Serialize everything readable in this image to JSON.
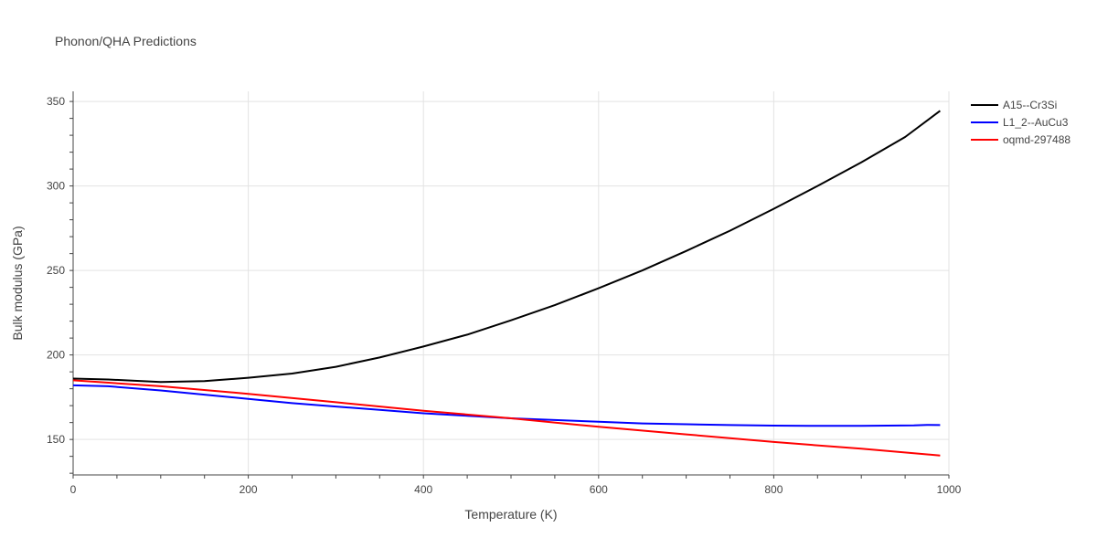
{
  "chart_data": {
    "type": "line",
    "title": "Phonon/QHA Predictions",
    "xlabel": "Temperature (K)",
    "ylabel": "Bulk modulus (GPa)",
    "xlim": [
      0,
      1000
    ],
    "ylim": [
      129,
      356
    ],
    "xticks": [
      0,
      200,
      400,
      600,
      800,
      1000
    ],
    "yticks": [
      150,
      200,
      250,
      300,
      350
    ],
    "grid": true,
    "legend_position": "top-right",
    "series": [
      {
        "name": "A15--Cr3Si",
        "color": "#000000",
        "x": [
          0,
          40,
          100,
          150,
          200,
          250,
          300,
          350,
          400,
          450,
          500,
          550,
          600,
          650,
          700,
          750,
          800,
          850,
          900,
          950,
          990
        ],
        "y": [
          186,
          185.5,
          184,
          184.5,
          186.5,
          189,
          193,
          198.5,
          205,
          212,
          220.5,
          229.5,
          239.5,
          250,
          261.5,
          273.5,
          286.5,
          300,
          314,
          329,
          344.5
        ]
      },
      {
        "name": "L1_2--AuCu3",
        "color": "#0000ff",
        "x": [
          0,
          40,
          100,
          150,
          200,
          250,
          300,
          350,
          400,
          450,
          500,
          550,
          600,
          650,
          700,
          750,
          800,
          840,
          900,
          960,
          975,
          990
        ],
        "y": [
          182,
          181.5,
          179,
          176.5,
          174,
          171.5,
          169.5,
          167.5,
          165.5,
          164,
          162.5,
          161.5,
          160.5,
          159.5,
          159,
          158.5,
          158.2,
          158,
          158.1,
          158.3,
          158.6,
          158.5
        ]
      },
      {
        "name": "oqmd-297488",
        "color": "#ff0000",
        "x": [
          0,
          100,
          200,
          300,
          400,
          500,
          600,
          700,
          800,
          900,
          990
        ],
        "y": [
          185,
          181.5,
          177,
          172,
          167,
          162.5,
          157.5,
          153,
          148.5,
          144.5,
          140.5
        ]
      }
    ]
  }
}
